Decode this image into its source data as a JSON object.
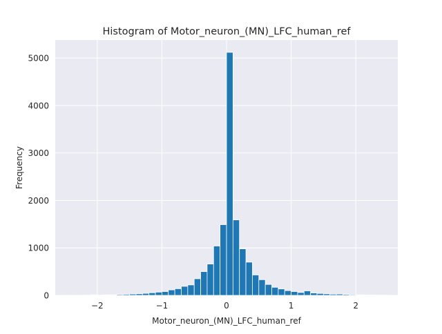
{
  "chart_data": {
    "type": "bar",
    "title": "Histogram of Motor_neuron_(MN)_LFC_human_ref",
    "xlabel": "Motor_neuron_(MN)_LFC_human_ref",
    "ylabel": "Frequency",
    "xlim": [
      -2.65,
      2.65
    ],
    "ylim": [
      0,
      5380
    ],
    "x_ticks": [
      {
        "value": -2,
        "label": "−2"
      },
      {
        "value": -1,
        "label": "−1"
      },
      {
        "value": 0,
        "label": "0"
      },
      {
        "value": 1,
        "label": "1"
      },
      {
        "value": 2,
        "label": "2"
      }
    ],
    "y_ticks": [
      {
        "value": 0,
        "label": "0"
      },
      {
        "value": 1000,
        "label": "1000"
      },
      {
        "value": 2000,
        "label": "2000"
      },
      {
        "value": 3000,
        "label": "3000"
      },
      {
        "value": 4000,
        "label": "4000"
      },
      {
        "value": 5000,
        "label": "5000"
      }
    ],
    "bin_width": 0.1,
    "bins": [
      {
        "x0": -2.5,
        "count": 3
      },
      {
        "x0": -2.4,
        "count": 2
      },
      {
        "x0": -2.3,
        "count": 3
      },
      {
        "x0": -2.2,
        "count": 4
      },
      {
        "x0": -2.1,
        "count": 12
      },
      {
        "x0": -2.0,
        "count": 6
      },
      {
        "x0": -1.9,
        "count": 10
      },
      {
        "x0": -1.8,
        "count": 12
      },
      {
        "x0": -1.7,
        "count": 18
      },
      {
        "x0": -1.6,
        "count": 22
      },
      {
        "x0": -1.5,
        "count": 28
      },
      {
        "x0": -1.4,
        "count": 33
      },
      {
        "x0": -1.3,
        "count": 42
      },
      {
        "x0": -1.2,
        "count": 55
      },
      {
        "x0": -1.1,
        "count": 68
      },
      {
        "x0": -1.0,
        "count": 80
      },
      {
        "x0": -0.9,
        "count": 115
      },
      {
        "x0": -0.8,
        "count": 140
      },
      {
        "x0": -0.7,
        "count": 190
      },
      {
        "x0": -0.6,
        "count": 220
      },
      {
        "x0": -0.5,
        "count": 350
      },
      {
        "x0": -0.4,
        "count": 500
      },
      {
        "x0": -0.3,
        "count": 660
      },
      {
        "x0": -0.2,
        "count": 1040
      },
      {
        "x0": -0.1,
        "count": 1490
      },
      {
        "x0": 0.0,
        "count": 5120
      },
      {
        "x0": 0.1,
        "count": 1590
      },
      {
        "x0": 0.2,
        "count": 980
      },
      {
        "x0": 0.3,
        "count": 700
      },
      {
        "x0": 0.4,
        "count": 430
      },
      {
        "x0": 0.5,
        "count": 330
      },
      {
        "x0": 0.6,
        "count": 230
      },
      {
        "x0": 0.7,
        "count": 170
      },
      {
        "x0": 0.8,
        "count": 135
      },
      {
        "x0": 0.9,
        "count": 100
      },
      {
        "x0": 1.0,
        "count": 80
      },
      {
        "x0": 1.1,
        "count": 60
      },
      {
        "x0": 1.2,
        "count": 95
      },
      {
        "x0": 1.3,
        "count": 50
      },
      {
        "x0": 1.4,
        "count": 40
      },
      {
        "x0": 1.5,
        "count": 32
      },
      {
        "x0": 1.6,
        "count": 25
      },
      {
        "x0": 1.7,
        "count": 28
      },
      {
        "x0": 1.8,
        "count": 20
      },
      {
        "x0": 1.9,
        "count": 15
      },
      {
        "x0": 2.0,
        "count": 12
      },
      {
        "x0": 2.1,
        "count": 10
      },
      {
        "x0": 2.2,
        "count": 8
      },
      {
        "x0": 2.3,
        "count": 5
      },
      {
        "x0": 2.4,
        "count": 4
      }
    ],
    "grid": true,
    "bar_color": "#1f77b4",
    "bar_edge_color": "#ffffff",
    "plot_background": "#eaeaf2",
    "grid_color": "#ffffff"
  }
}
